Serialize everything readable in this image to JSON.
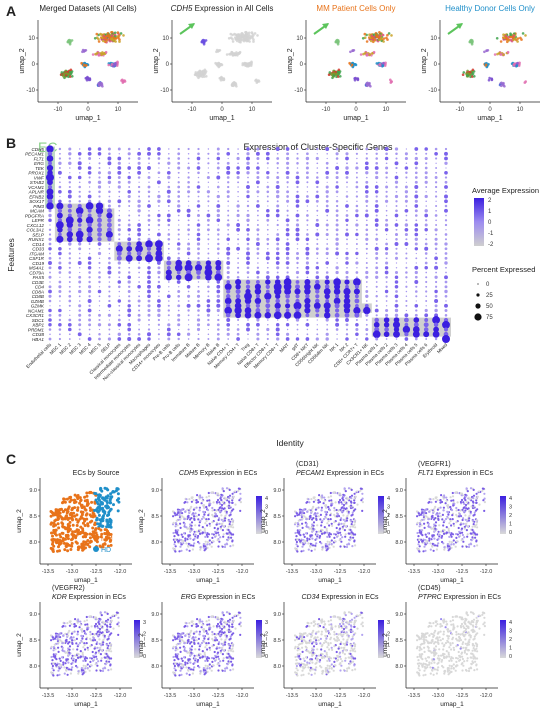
{
  "panels": {
    "A": {
      "letter": "A",
      "plots": [
        {
          "title": "Merged Datasets (All Cells)",
          "title_color": "#222222",
          "mode": "all"
        },
        {
          "title_gene": "CDH5",
          "title_rest": " Expression in All Cells",
          "title_color": "#222222",
          "mode": "cdh5"
        },
        {
          "title": "MM Patient Cells Only",
          "title_color": "#e8731a",
          "mode": "mm"
        },
        {
          "title": "Healthy Donor Cells Only",
          "title_color": "#1f8fc9",
          "mode": "hd"
        }
      ],
      "xlabel": "umap_1",
      "ylabel": "umap_2",
      "xticks": [
        "-10",
        "0",
        "10"
      ],
      "yticks": [
        "-10",
        "0",
        "10"
      ]
    },
    "B": {
      "letter": "B",
      "title": "Expression of Cluster-Specific Genes",
      "ec_label": "EC",
      "xlabel": "Identity",
      "ylabel": "Features",
      "legend_avg_title": "Average Expression",
      "legend_avg_ticks": [
        "2",
        "1",
        "0",
        "-1",
        "-2"
      ],
      "legend_pct_title": "Percent Expressed",
      "legend_pct_values": [
        "0",
        "25",
        "50",
        "75"
      ]
    },
    "C": {
      "letter": "C",
      "xlabel": "umap_1",
      "ylabel": "umap_2",
      "xticks": [
        "-13.5",
        "-13.0",
        "-12.5",
        "-12.0"
      ],
      "yticks": [
        "9.0",
        "8.5",
        "8.0"
      ],
      "plots": [
        {
          "pre": "",
          "gene": "",
          "title": "ECs by Source",
          "mode": "source",
          "legend": [
            "MM",
            "HD"
          ]
        },
        {
          "pre": "",
          "gene": "CDH5",
          "title": " Expression in ECs",
          "mode": "expr",
          "ticks": [
            "4",
            "3",
            "2",
            "1",
            "0"
          ]
        },
        {
          "pre": "(CD31)",
          "gene": "PECAM1",
          "title": " Expression in ECs",
          "mode": "expr",
          "ticks": [
            "4",
            "3",
            "2",
            "1",
            "0"
          ]
        },
        {
          "pre": "(VEGFR1)",
          "gene": "FLT1",
          "title": " Expression in ECs",
          "mode": "expr",
          "ticks": [
            "4",
            "3",
            "2",
            "1",
            "0"
          ]
        },
        {
          "pre": "(VEGFR2)",
          "gene": "KDR",
          "title": " Expression in ECs",
          "mode": "expr",
          "ticks": [
            "3",
            "2",
            "1",
            "0"
          ]
        },
        {
          "pre": "",
          "gene": "ERG",
          "title": " Expression in ECs",
          "mode": "expr",
          "ticks": [
            "3",
            "2",
            "1",
            "0"
          ]
        },
        {
          "pre": "",
          "gene": "CD34",
          "title": " Expression in ECs",
          "mode": "sparse",
          "ticks": [
            "3",
            "2",
            "1",
            "0"
          ]
        },
        {
          "pre": "(CD45)",
          "gene": "PTPRC",
          "title": " Expression in ECs",
          "mode": "none",
          "ticks": [
            "4",
            "3",
            "2",
            "1",
            "0"
          ]
        }
      ]
    }
  },
  "chart_data": {
    "type": "scatter",
    "dotplot": {
      "features": [
        "CDH5",
        "PECAM1",
        "FLT1",
        "ERG",
        "TEK",
        "PROX1",
        "VWF",
        "STAB2",
        "VCAM1",
        "APLNR",
        "EFNB2",
        "SOX17",
        "PIM3",
        "MCAM",
        "PDGFRA",
        "LEPR",
        "CXCL12",
        "COL3A1",
        "SELP",
        "RUNX1",
        "CD14",
        "CD33",
        "ITGAM",
        "CSF1R",
        "CD19",
        "MS4A1",
        "CD79A",
        "PAX5",
        "CD3E",
        "CD4",
        "CD8A",
        "CD8B",
        "GZMB",
        "GZMK",
        "NCAM1",
        "CX3CR1",
        "SDC1",
        "XBP1",
        "PRDM1",
        "CD38",
        "HBA1"
      ],
      "identities": [
        "Endothelial cells",
        "MSC 1",
        "MSC 2",
        "MSC 3",
        "MSC 4",
        "MSC 5",
        "SELP",
        "Classical monocytes",
        "Intermediate monocytes",
        "Non-classical monocytes",
        "Macrophages",
        "CD14+ monocytes",
        "Pre-B cells",
        "Pro-B cells",
        "Immature B",
        "Mature B",
        "Memory B",
        "Naive B",
        "Naive CD4+ T",
        "Memory CD4+ T",
        "Treg",
        "Naive CD8+ T",
        "Effector CD8+ T",
        "Memory CD8+ T",
        "MAIT",
        "gdT",
        "CD8+ NKT",
        "CD56bright NK",
        "CD56dim NK",
        "NK 1",
        "NK 2",
        "CD8+ CCR7+ T",
        "CX3CR1+ NK",
        "Plasma cells 1",
        "Plasma cells 2",
        "Plasma cells 3",
        "Plasma cells 4",
        "Plasma cells 5",
        "Plasma cells 6",
        "Erythroid",
        "Mixed"
      ],
      "blocks": [
        {
          "rows": [
            0,
            12
          ],
          "cols": [
            0,
            0
          ]
        },
        {
          "rows": [
            12,
            13
          ],
          "cols": [
            1,
            5
          ]
        },
        {
          "rows": [
            13,
            19
          ],
          "cols": [
            1,
            6
          ]
        },
        {
          "rows": [
            20,
            23
          ],
          "cols": [
            7,
            11
          ]
        },
        {
          "rows": [
            24,
            27
          ],
          "cols": [
            12,
            17
          ]
        },
        {
          "rows": [
            28,
            35
          ],
          "cols": [
            18,
            31
          ]
        },
        {
          "rows": [
            33,
            34
          ],
          "cols": [
            29,
            32
          ]
        },
        {
          "rows": [
            36,
            39
          ],
          "cols": [
            33,
            40
          ]
        }
      ],
      "avg_expression_range": [
        -2,
        2
      ],
      "percent_expressed_range": [
        0,
        75
      ]
    }
  }
}
